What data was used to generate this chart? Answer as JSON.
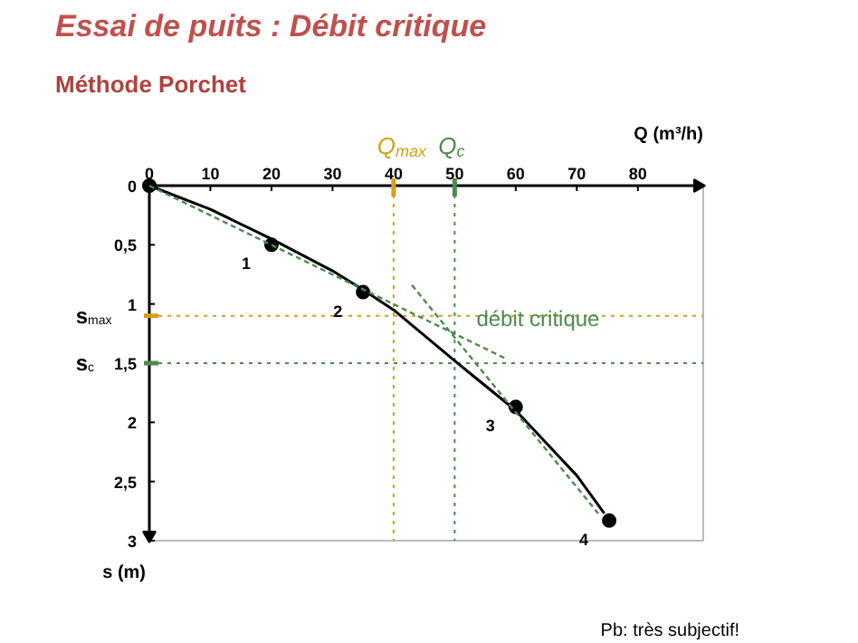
{
  "chart_data": {
    "type": "line",
    "title": "Essai de puits : Débit critique",
    "subtitle": "Méthode Porchet",
    "xlabel": "Q (m³/h)",
    "ylabel": "s (m)",
    "xlim": [
      0,
      90.7
    ],
    "ylim": [
      3,
      0
    ],
    "xticks": [
      0,
      10,
      20,
      30,
      40,
      50,
      60,
      70,
      80
    ],
    "yticks": [
      0,
      {
        "value": 0.5,
        "label": "0,5"
      },
      1,
      {
        "value": 1.5,
        "label": "1,5"
      },
      2,
      {
        "value": 2.5,
        "label": "2,5"
      },
      3
    ],
    "grid": false,
    "series": [
      {
        "color": "#000000",
        "line_style": "solid",
        "marker": "none",
        "x": [
          0,
          10,
          20,
          30,
          35,
          40,
          50,
          60,
          70,
          74.5
        ],
        "values": [
          0,
          0.2,
          0.45,
          0.72,
          0.88,
          1.05,
          1.48,
          1.9,
          2.45,
          2.77
        ]
      },
      {
        "type": "scatter",
        "color": "#000000",
        "marker": "circle",
        "x": [
          0,
          20,
          35,
          60,
          75.3
        ],
        "values": [
          0,
          0.5,
          0.9,
          1.87,
          2.83
        ]
      },
      {
        "color": "#4e8a4e",
        "line_style": "dashed",
        "marker": "none",
        "x": [
          0,
          58.7
        ],
        "values": [
          0,
          1.47
        ]
      },
      {
        "color": "#4e8a4e",
        "line_style": "dashed",
        "marker": "none",
        "x": [
          43,
          73.5
        ],
        "values": [
          0.84,
          2.77
        ]
      }
    ],
    "ref_lines": [
      {
        "axis": "x",
        "value": 40,
        "label": "Q$_{max}$",
        "color": "#d4a017"
      },
      {
        "axis": "x",
        "value": 50,
        "label": "Q$_{c}$",
        "color": "#4e8a4e"
      },
      {
        "axis": "y",
        "value": 1.1,
        "label": "s$_{max}$",
        "color": "#d4a017"
      },
      {
        "axis": "y",
        "value": 1.5,
        "label": "s$_{c}$",
        "color": "#4e8a4e"
      }
    ],
    "annotations": [
      {
        "text": "1",
        "x": 20,
        "y": 0.5
      },
      {
        "text": "2",
        "x": 35,
        "y": 0.9
      },
      {
        "text": "3",
        "x": 60,
        "y": 1.87
      },
      {
        "text": "4",
        "x": 75.3,
        "y": 2.83
      },
      {
        "text": "débit critique",
        "x": 50,
        "y": 1.25
      },
      "Pb: très subjectif!"
    ]
  }
}
